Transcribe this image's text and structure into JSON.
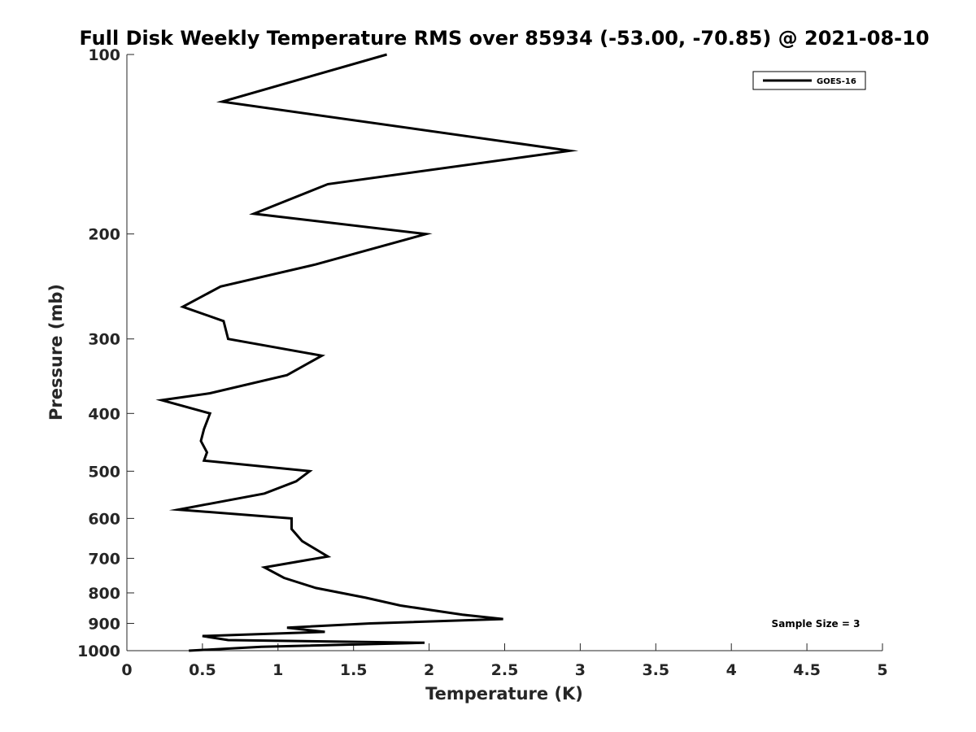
{
  "chart_data": {
    "type": "line",
    "title": "Full Disk Weekly Temperature RMS over 85934 (-53.00, -70.85) @ 2021-08-10",
    "xlabel": "Temperature (K)",
    "ylabel": "Pressure (mb)",
    "xlim": [
      0,
      5
    ],
    "ylim": [
      100,
      1000
    ],
    "y_scale": "log",
    "y_reversed": true,
    "x_ticks": [
      0,
      0.5,
      1,
      1.5,
      2,
      2.5,
      3,
      3.5,
      4,
      4.5,
      5
    ],
    "x_tick_labels": [
      "0",
      "0.5",
      "1",
      "1.5",
      "2",
      "2.5",
      "3",
      "3.5",
      "4",
      "4.5",
      "5"
    ],
    "y_ticks": [
      100,
      200,
      300,
      400,
      500,
      600,
      700,
      800,
      900,
      1000
    ],
    "y_tick_labels": [
      "100",
      "200",
      "300",
      "400",
      "500",
      "600",
      "700",
      "800",
      "900",
      "1000"
    ],
    "grid": false,
    "legend_position": "top-right",
    "annotation": "Sample Size = 3",
    "colors": {
      "line": "#000000",
      "axis": "#262626"
    },
    "series": [
      {
        "name": "GOES-16",
        "x": [
          1.72,
          0.63,
          2.93,
          1.33,
          0.84,
          1.98,
          1.25,
          0.62,
          0.37,
          0.64,
          0.67,
          1.29,
          1.06,
          0.55,
          0.23,
          0.55,
          0.51,
          0.49,
          0.53,
          0.51,
          1.21,
          1.12,
          0.91,
          0.34,
          1.09,
          1.09,
          1.16,
          1.33,
          0.91,
          1.04,
          1.25,
          1.58,
          1.81,
          2.22,
          2.49,
          1.61,
          1.06,
          1.31,
          0.5,
          0.67,
          1.97,
          0.89,
          0.41
        ],
        "y": [
          100,
          120,
          145,
          165,
          185,
          200,
          225,
          245,
          265,
          280,
          300,
          320,
          345,
          370,
          380,
          400,
          425,
          445,
          465,
          480,
          500,
          520,
          545,
          580,
          600,
          625,
          655,
          695,
          725,
          755,
          785,
          815,
          840,
          870,
          885,
          900,
          915,
          930,
          945,
          960,
          970,
          985,
          1000
        ]
      }
    ]
  }
}
